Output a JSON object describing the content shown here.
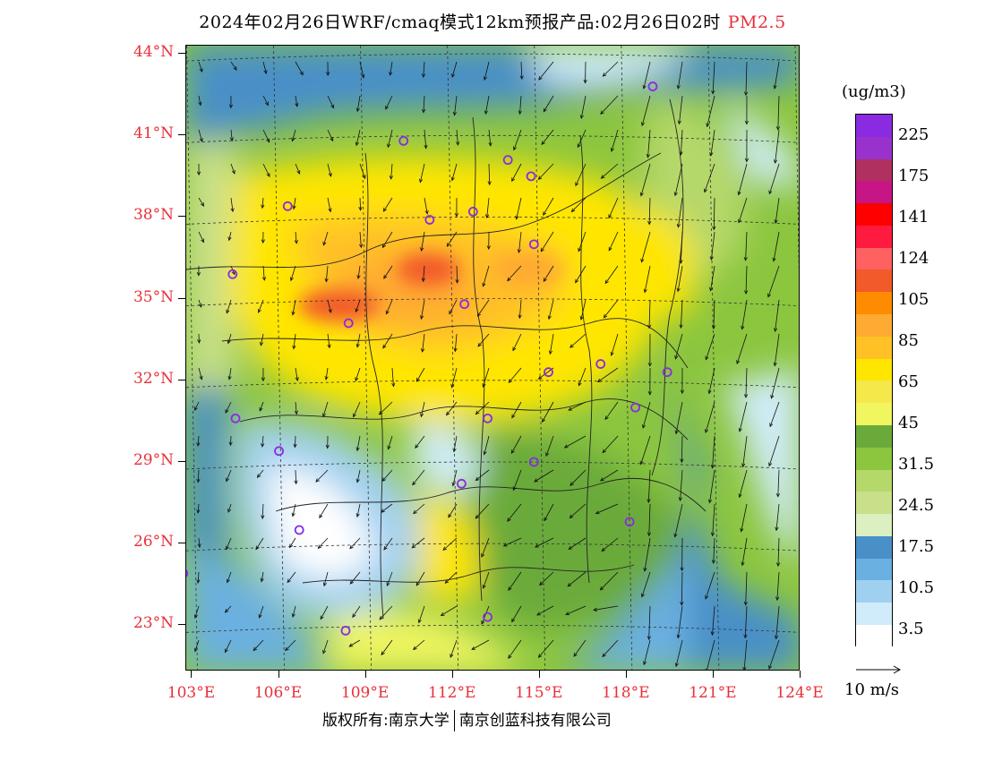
{
  "title": {
    "main": "2024年02月26日WRF/cmaq模式12km预报产品:02月26日02时",
    "pollutant": "PM2.5"
  },
  "axes": {
    "lat_labels": [
      "44°N",
      "41°N",
      "38°N",
      "35°N",
      "32°N",
      "29°N",
      "26°N",
      "23°N"
    ],
    "lon_labels": [
      "103°E",
      "106°E",
      "109°E",
      "112°E",
      "115°E",
      "118°E",
      "121°E",
      "124°E"
    ]
  },
  "legend": {
    "unit": "(ug/m3)",
    "colors": [
      "#8a2be2",
      "#9932cc",
      "#b03060",
      "#c71585",
      "#ff0000",
      "#ff1a40",
      "#ff6060",
      "#f25a2a",
      "#ff8c00",
      "#ffaa33",
      "#ffc125",
      "#ffe600",
      "#f5e84a",
      "#f0f560",
      "#6aaa3a",
      "#8cc63f",
      "#b5d86a",
      "#c8e08a",
      "#dcefc0",
      "#4a90c8",
      "#6ab0e0",
      "#a0d0f0",
      "#d0ecfa",
      "#ffffff"
    ],
    "labels": [
      "225",
      "175",
      "141",
      "124",
      "105",
      "85",
      "65",
      "45",
      "31.5",
      "24.5",
      "17.5",
      "10.5",
      "3.5"
    ]
  },
  "wind_scale": {
    "label": "10 m/s"
  },
  "stations": [
    {
      "lon": 118.9,
      "lat": 42.8
    },
    {
      "lon": 110.3,
      "lat": 40.8
    },
    {
      "lon": 113.9,
      "lat": 40.1
    },
    {
      "lon": 114.7,
      "lat": 39.5
    },
    {
      "lon": 106.3,
      "lat": 38.4
    },
    {
      "lon": 111.2,
      "lat": 37.9
    },
    {
      "lon": 112.7,
      "lat": 38.2
    },
    {
      "lon": 114.8,
      "lat": 37.0
    },
    {
      "lon": 104.4,
      "lat": 35.9
    },
    {
      "lon": 112.4,
      "lat": 34.8
    },
    {
      "lon": 108.4,
      "lat": 34.1
    },
    {
      "lon": 115.3,
      "lat": 32.3
    },
    {
      "lon": 117.1,
      "lat": 32.6
    },
    {
      "lon": 119.4,
      "lat": 32.3
    },
    {
      "lon": 104.5,
      "lat": 30.6
    },
    {
      "lon": 113.2,
      "lat": 30.6
    },
    {
      "lon": 118.3,
      "lat": 31.0
    },
    {
      "lon": 106.0,
      "lat": 29.4
    },
    {
      "lon": 114.8,
      "lat": 29.0
    },
    {
      "lon": 112.3,
      "lat": 28.2
    },
    {
      "lon": 106.7,
      "lat": 26.5
    },
    {
      "lon": 118.1,
      "lat": 26.8
    },
    {
      "lon": 102.7,
      "lat": 24.9
    },
    {
      "lon": 108.3,
      "lat": 22.8
    },
    {
      "lon": 113.2,
      "lat": 23.3
    }
  ],
  "copyright": {
    "left": "版权所有:南京大学",
    "right": "南京创蓝科技有限公司"
  }
}
